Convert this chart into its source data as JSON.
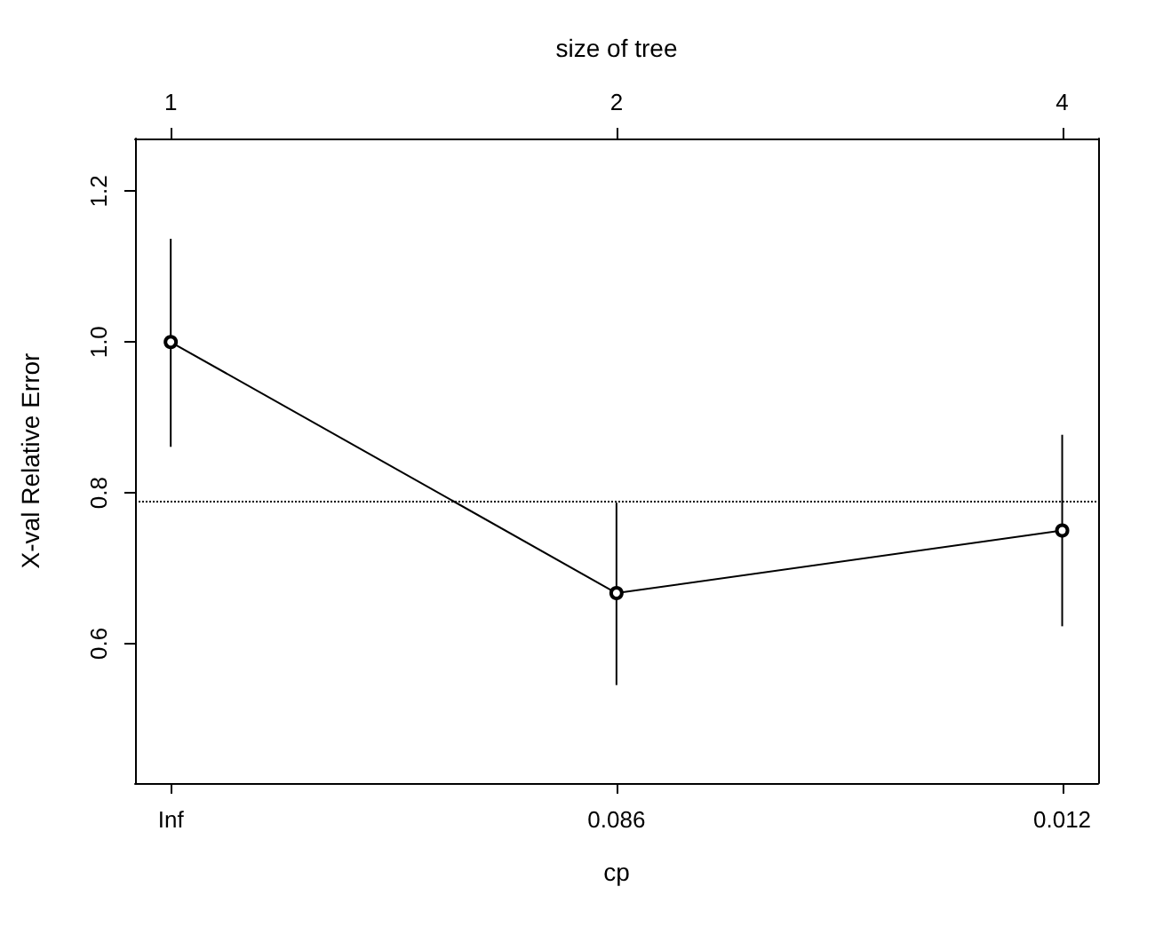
{
  "chart_data": {
    "type": "line",
    "xlabel": "cp",
    "ylabel": "X-val Relative Error",
    "x2label": "size of tree",
    "categories": [
      "Inf",
      "0.086",
      "0.012"
    ],
    "x2lim": [
      0.946,
      4.23
    ],
    "x2ticks": [
      1,
      2,
      4
    ],
    "log": "x2",
    "series": [
      {
        "color": "#000000",
        "values": [
          1.0,
          0.667,
          0.75
        ],
        "errors": [
          [
            0.861,
            1.137
          ],
          [
            0.545,
            0.787
          ],
          [
            0.623,
            0.877
          ]
        ]
      }
    ],
    "ylim": [
      0.415,
      1.27
    ],
    "yticks": [
      {
        "value": 0.6,
        "label": "0.6"
      },
      {
        "value": 0.8,
        "label": "0.8"
      },
      {
        "value": 1,
        "label": "1.0"
      },
      {
        "value": 1.2,
        "label": "1.2"
      }
    ],
    "ref_lines": [
      {
        "axis": "y",
        "value": 0.785,
        "line_style": "dotted",
        "color": "#000000"
      }
    ],
    "grid": false,
    "marker": "circle",
    "line_style": "solid"
  }
}
